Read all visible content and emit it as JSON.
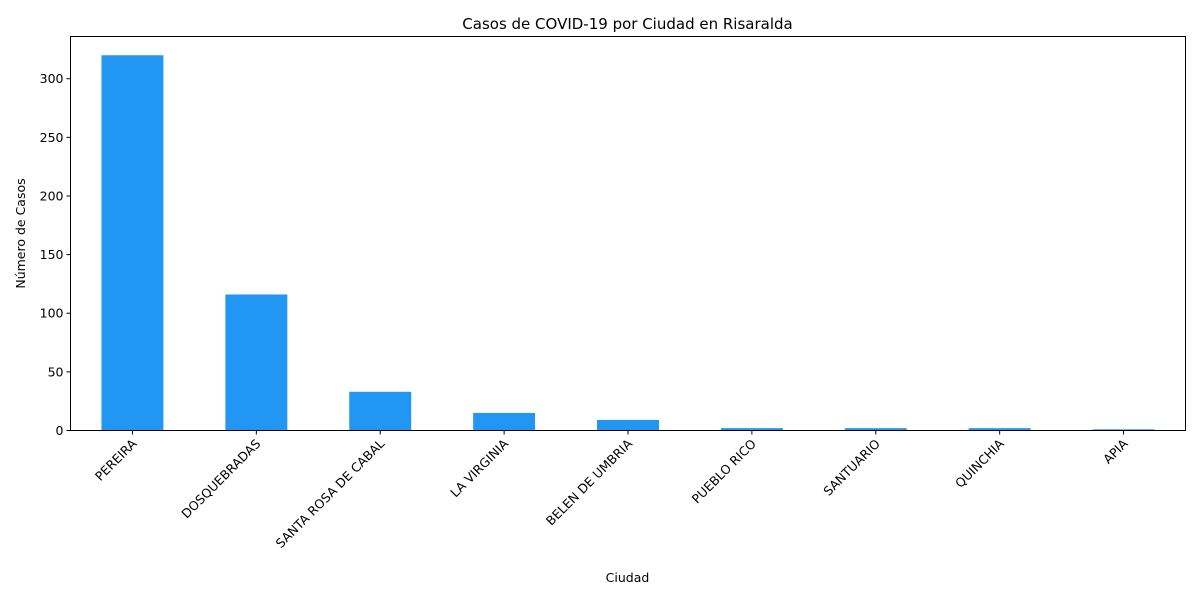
{
  "chart_data": {
    "type": "bar",
    "title": "Casos de COVID-19 por Ciudad en Risaralda",
    "xlabel": "Ciudad",
    "ylabel": "Número de Casos",
    "categories": [
      "PEREIRA",
      "DOSQUEBRADAS",
      "SANTA ROSA DE CABAL",
      "LA VIRGINIA",
      "BELEN DE UMBRIA",
      "PUEBLO RICO",
      "SANTUARIO",
      "QUINCHIA",
      "APIA"
    ],
    "values": [
      320,
      116,
      33,
      15,
      9,
      2,
      2,
      2,
      1
    ],
    "ylim": [
      0,
      336
    ],
    "yticks": [
      0,
      50,
      100,
      150,
      200,
      250,
      300
    ],
    "bar_color": "#2196F3",
    "grid": false,
    "legend": "none"
  }
}
